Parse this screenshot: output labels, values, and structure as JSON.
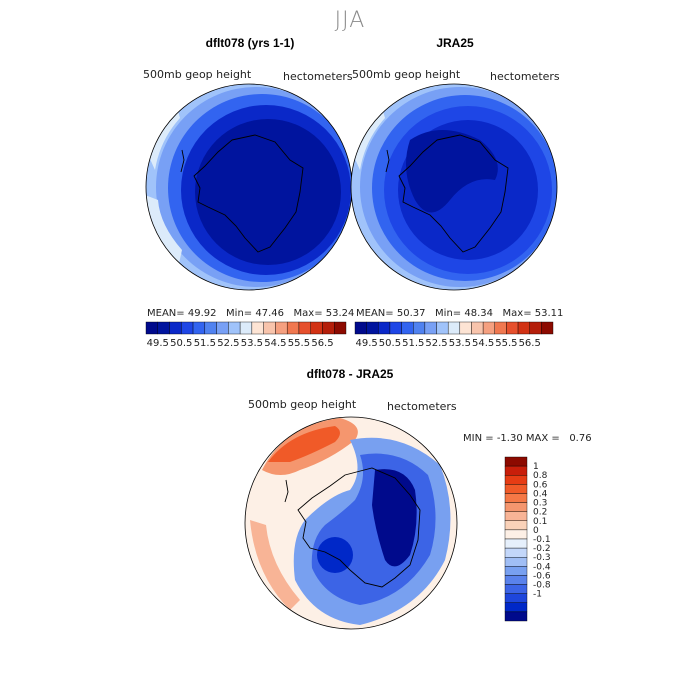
{
  "figure": {
    "title": "JJA"
  },
  "panels": [
    {
      "title": "dflt078 (yrs 1-1)",
      "variable": "500mb geop height",
      "units": "hectometers",
      "stats": {
        "mean_label": "MEAN=",
        "mean": "49.92",
        "min_label": "Min=",
        "min": "47.46",
        "max_label": "Max=",
        "max": "53.24"
      }
    },
    {
      "title": "JRA25",
      "variable": "500mb geop height",
      "units": "hectometers",
      "stats": {
        "mean_label": "MEAN=",
        "mean": "50.37",
        "min_label": "Min=",
        "min": "48.34",
        "max_label": "Max=",
        "max": "53.11"
      }
    },
    {
      "title": "dflt078 - JRA25",
      "variable": "500mb geop height",
      "units": "hectometers",
      "stats": {
        "min_label": "MIN =",
        "min": "-1.30",
        "max_label": "MAX =",
        "max": "0.76"
      }
    }
  ],
  "chart_data": [
    {
      "type": "heatmap",
      "projection": "polar stereographic (south pole)",
      "title": "dflt078 (yrs 1-1)",
      "colorbar": {
        "orientation": "horizontal",
        "levels": [
          "49.5",
          "50.5",
          "51.5",
          "52.5",
          "53.5",
          "54.5",
          "55.5",
          "56.5"
        ],
        "colors": [
          "#000a8c",
          "#00149e",
          "#0a28c8",
          "#1e46e6",
          "#3264f0",
          "#5082f0",
          "#78a0f5",
          "#a0c3fa",
          "#dcebfa",
          "#fde4d4",
          "#f8c4ac",
          "#f5a080",
          "#f07850",
          "#e6502d",
          "#d23214",
          "#b41e0a",
          "#8c0a00"
        ]
      }
    },
    {
      "type": "heatmap",
      "projection": "polar stereographic (south pole)",
      "title": "JRA25",
      "colorbar": {
        "orientation": "horizontal",
        "levels": [
          "49.5",
          "50.5",
          "51.5",
          "52.5",
          "53.5",
          "54.5",
          "55.5",
          "56.5"
        ],
        "colors": [
          "#000a8c",
          "#00149e",
          "#0a28c8",
          "#1e46e6",
          "#3264f0",
          "#5082f0",
          "#78a0f5",
          "#a0c3fa",
          "#dcebfa",
          "#fde4d4",
          "#f8c4ac",
          "#f5a080",
          "#f07850",
          "#e6502d",
          "#d23214",
          "#b41e0a",
          "#8c0a00"
        ]
      }
    },
    {
      "type": "heatmap",
      "projection": "polar stereographic (south pole)",
      "title": "dflt078 - JRA25",
      "colorbar": {
        "orientation": "vertical",
        "levels": [
          "1",
          "0.8",
          "0.6",
          "0.4",
          "0.3",
          "0.2",
          "0.1",
          "0",
          "-0.1",
          "-0.2",
          "-0.3",
          "-0.4",
          "-0.6",
          "-0.8",
          "-1"
        ],
        "colors": [
          "#8c0a00",
          "#c81e0a",
          "#e63c14",
          "#f05a28",
          "#f57846",
          "#f5966e",
          "#f8b496",
          "#fad2b9",
          "#fdf0e6",
          "#e6f0fc",
          "#c3d7fa",
          "#a0bef5",
          "#78a0f0",
          "#5a82eb",
          "#3c64e6",
          "#1e46dc",
          "#0028c8",
          "#000a8c"
        ]
      }
    }
  ]
}
